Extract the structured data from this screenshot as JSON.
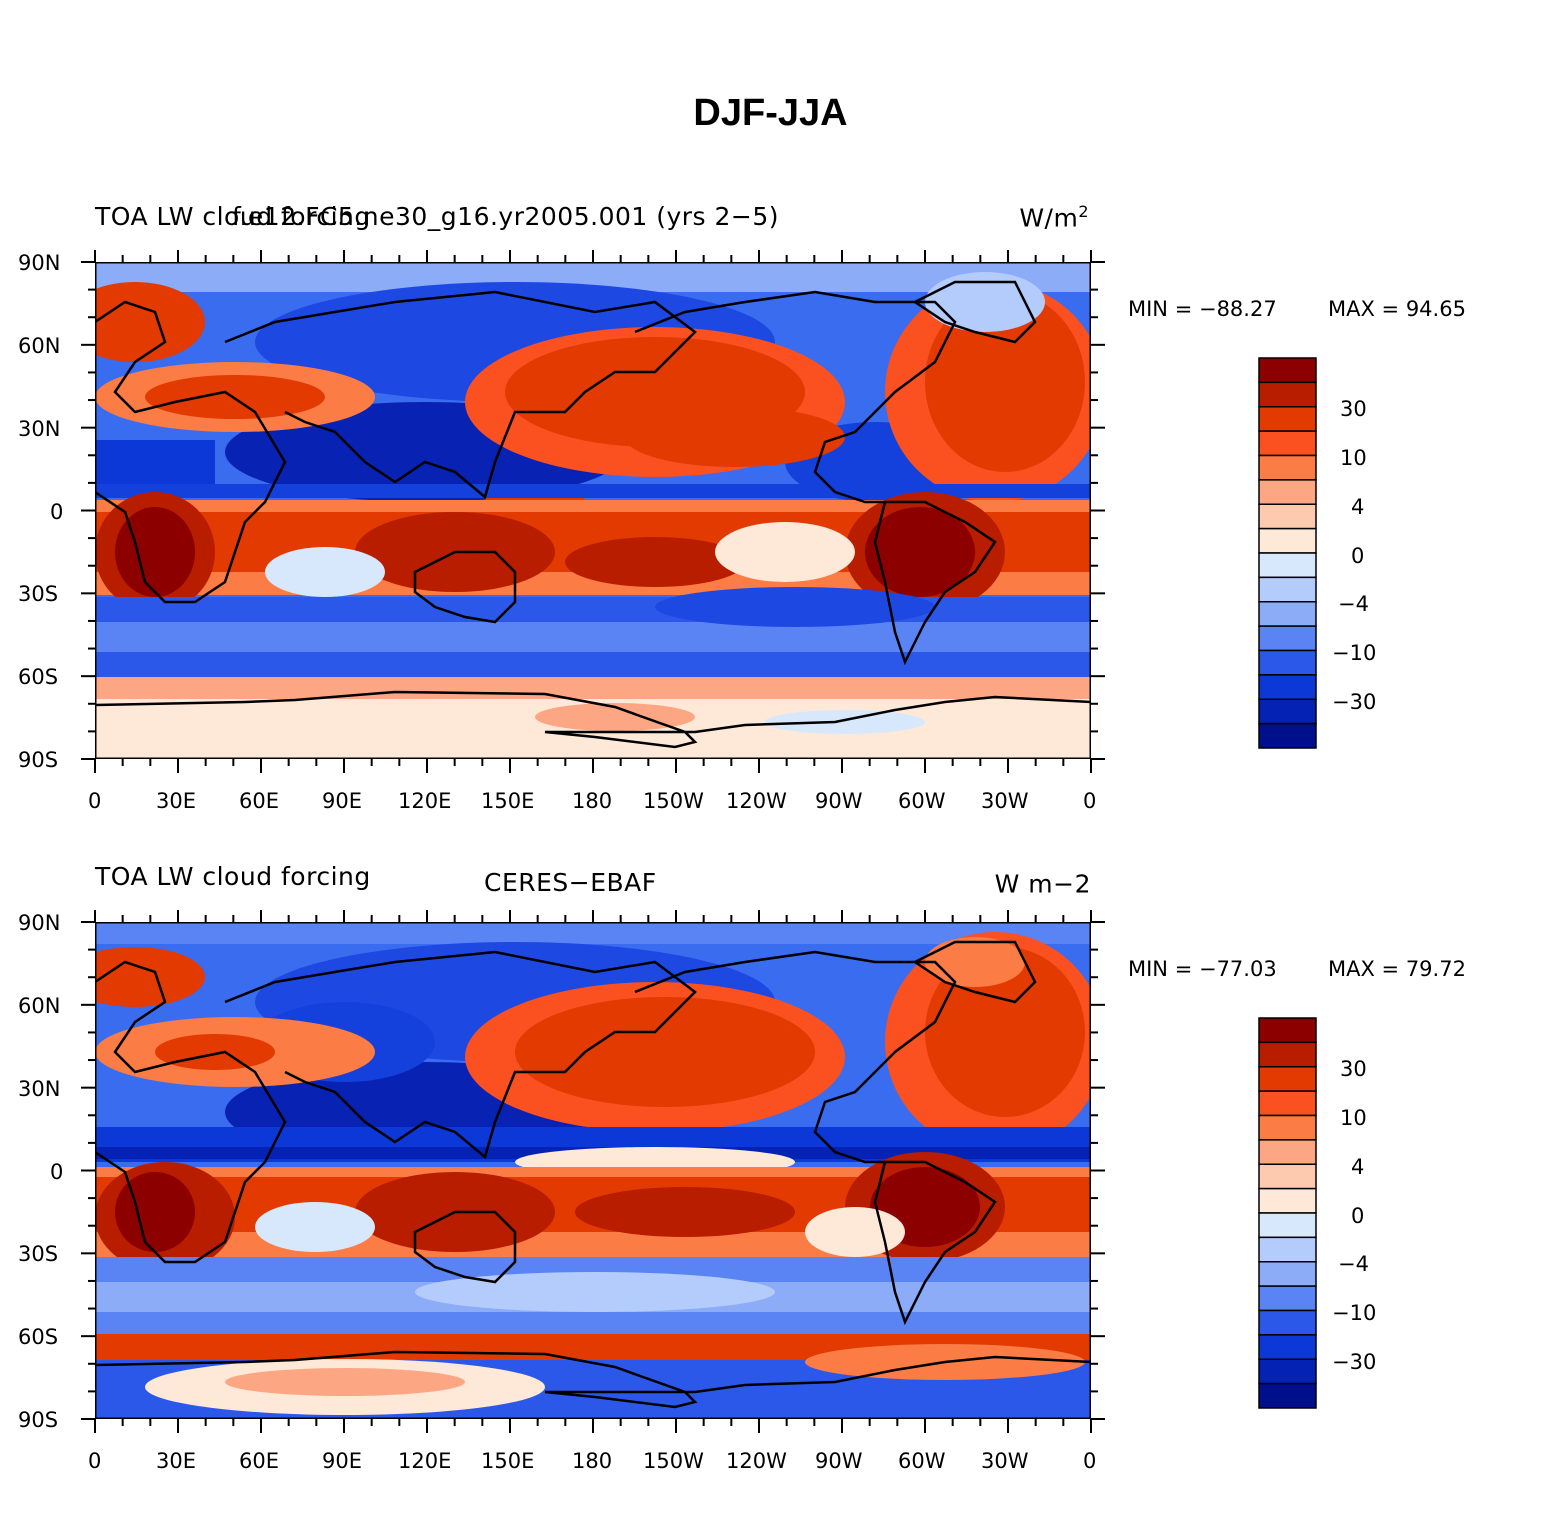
{
  "figure": {
    "title": "DJF-JJA"
  },
  "lat_ticks": [
    "90N",
    "60N",
    "30N",
    "0",
    "30S",
    "60S",
    "90S"
  ],
  "lon_ticks": [
    "0",
    "30E",
    "60E",
    "90E",
    "120E",
    "150E",
    "180",
    "150W",
    "120W",
    "90W",
    "60W",
    "30W",
    "0"
  ],
  "colorbar": {
    "labels": [
      "30",
      "10",
      "4",
      "0",
      "−4",
      "−10",
      "−30"
    ],
    "colors": [
      "#8c0000",
      "#b81d00",
      "#e23a00",
      "#fb5020",
      "#fb7c44",
      "#fca684",
      "#fdcab0",
      "#fee8d8",
      "#d8e8fc",
      "#b4ccfc",
      "#8cacf8",
      "#5a84f4",
      "#2c58ea",
      "#0c38d8",
      "#0422b4",
      "#00108c"
    ]
  },
  "panels": [
    {
      "left_title": "TOA LW cloud forcing",
      "center_title": "f.e12.FC5.ne30_g16.yr2005.001 (yrs 2−5)",
      "units": "W/m",
      "units_sup": "2",
      "min_label": "MIN = −88.27",
      "max_label": "MAX =  94.65"
    },
    {
      "left_title": "TOA LW cloud forcing",
      "center_title": "CERES−EBAF",
      "units": "W m−2",
      "units_sup": "",
      "min_label": "MIN = −77.03",
      "max_label": "MAX =  79.72"
    }
  ]
}
